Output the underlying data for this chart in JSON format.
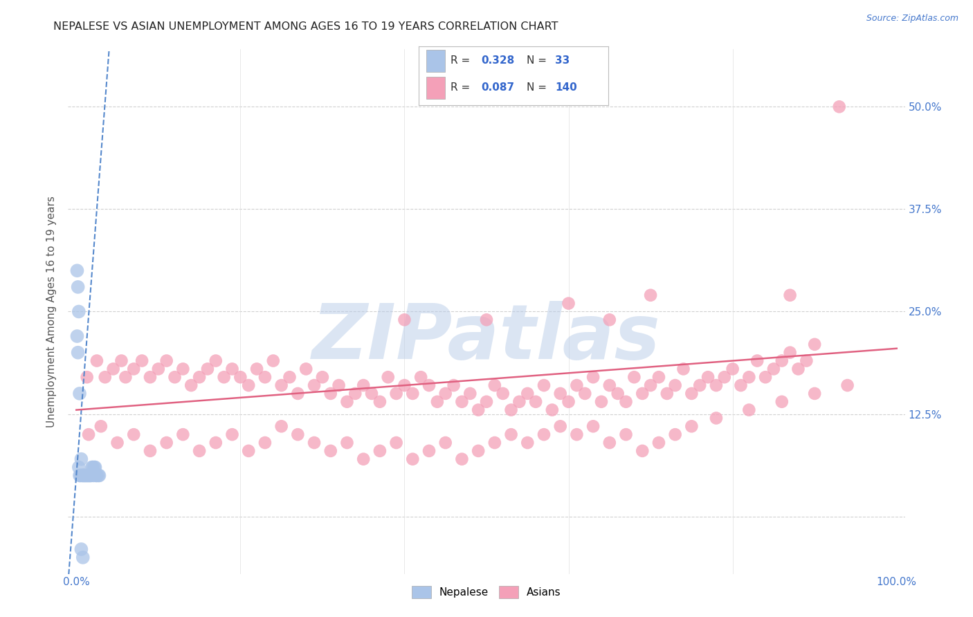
{
  "title": "NEPALESE VS ASIAN UNEMPLOYMENT AMONG AGES 16 TO 19 YEARS CORRELATION CHART",
  "source": "Source: ZipAtlas.com",
  "ylabel": "Unemployment Among Ages 16 to 19 years",
  "xlim": [
    -0.01,
    1.01
  ],
  "ylim": [
    -0.07,
    0.57
  ],
  "ytick_positions": [
    0.0,
    0.125,
    0.25,
    0.375,
    0.5
  ],
  "ytick_labels": [
    "",
    "12.5%",
    "25.0%",
    "37.5%",
    "50.0%"
  ],
  "nepalese_R": 0.328,
  "nepalese_N": 33,
  "asian_R": 0.087,
  "asian_N": 140,
  "nepalese_color": "#aac4e8",
  "asian_color": "#f4a0b8",
  "nepalese_edge_color": "#7aaad0",
  "asian_edge_color": "#e87898",
  "nepalese_trend_color": "#5588cc",
  "asian_trend_color": "#e06080",
  "watermark_text": "ZIPatlas",
  "watermark_color": "#b8cce8",
  "background_color": "#ffffff",
  "grid_color": "#d0d0d0",
  "title_color": "#222222",
  "source_color": "#4477cc",
  "tick_color": "#4477cc",
  "label_color": "#555555",
  "nepalese_x": [
    0.005,
    0.003,
    0.008,
    0.001,
    0.002,
    0.004,
    0.006,
    0.007,
    0.009,
    0.01,
    0.012,
    0.011,
    0.013,
    0.015,
    0.016,
    0.014,
    0.017,
    0.018,
    0.019,
    0.02,
    0.022,
    0.021,
    0.024,
    0.025,
    0.023,
    0.027,
    0.028,
    0.002,
    0.003,
    0.004,
    0.001,
    0.006,
    0.008
  ],
  "nepalese_y": [
    0.05,
    0.06,
    0.05,
    0.22,
    0.2,
    0.05,
    0.07,
    0.05,
    0.05,
    0.05,
    0.05,
    0.05,
    0.05,
    0.05,
    0.05,
    0.05,
    0.05,
    0.05,
    0.06,
    0.06,
    0.06,
    0.05,
    0.05,
    0.05,
    0.06,
    0.05,
    0.05,
    0.28,
    0.25,
    0.15,
    0.3,
    -0.04,
    -0.05
  ],
  "asian_x": [
    0.013,
    0.025,
    0.035,
    0.045,
    0.055,
    0.06,
    0.07,
    0.08,
    0.09,
    0.1,
    0.11,
    0.12,
    0.13,
    0.14,
    0.15,
    0.16,
    0.17,
    0.18,
    0.19,
    0.2,
    0.21,
    0.22,
    0.23,
    0.24,
    0.25,
    0.26,
    0.27,
    0.28,
    0.29,
    0.3,
    0.31,
    0.32,
    0.33,
    0.34,
    0.35,
    0.36,
    0.37,
    0.38,
    0.39,
    0.4,
    0.41,
    0.42,
    0.43,
    0.44,
    0.45,
    0.46,
    0.47,
    0.48,
    0.49,
    0.5,
    0.51,
    0.52,
    0.53,
    0.54,
    0.55,
    0.56,
    0.57,
    0.58,
    0.59,
    0.6,
    0.61,
    0.62,
    0.63,
    0.64,
    0.65,
    0.66,
    0.67,
    0.68,
    0.69,
    0.7,
    0.71,
    0.72,
    0.73,
    0.74,
    0.75,
    0.76,
    0.77,
    0.78,
    0.79,
    0.8,
    0.81,
    0.82,
    0.83,
    0.84,
    0.85,
    0.86,
    0.87,
    0.88,
    0.89,
    0.9,
    0.015,
    0.03,
    0.05,
    0.07,
    0.09,
    0.11,
    0.13,
    0.15,
    0.17,
    0.19,
    0.21,
    0.23,
    0.25,
    0.27,
    0.29,
    0.31,
    0.33,
    0.35,
    0.37,
    0.39,
    0.41,
    0.43,
    0.45,
    0.47,
    0.49,
    0.51,
    0.53,
    0.55,
    0.57,
    0.59,
    0.61,
    0.63,
    0.65,
    0.67,
    0.69,
    0.71,
    0.73,
    0.75,
    0.78,
    0.82,
    0.86,
    0.9,
    0.94,
    0.6,
    0.7,
    0.87,
    0.93,
    0.5,
    0.65,
    0.4
  ],
  "asian_y": [
    0.17,
    0.19,
    0.17,
    0.18,
    0.19,
    0.17,
    0.18,
    0.19,
    0.17,
    0.18,
    0.19,
    0.17,
    0.18,
    0.16,
    0.17,
    0.18,
    0.19,
    0.17,
    0.18,
    0.17,
    0.16,
    0.18,
    0.17,
    0.19,
    0.16,
    0.17,
    0.15,
    0.18,
    0.16,
    0.17,
    0.15,
    0.16,
    0.14,
    0.15,
    0.16,
    0.15,
    0.14,
    0.17,
    0.15,
    0.16,
    0.15,
    0.17,
    0.16,
    0.14,
    0.15,
    0.16,
    0.14,
    0.15,
    0.13,
    0.14,
    0.16,
    0.15,
    0.13,
    0.14,
    0.15,
    0.14,
    0.16,
    0.13,
    0.15,
    0.14,
    0.16,
    0.15,
    0.17,
    0.14,
    0.16,
    0.15,
    0.14,
    0.17,
    0.15,
    0.16,
    0.17,
    0.15,
    0.16,
    0.18,
    0.15,
    0.16,
    0.17,
    0.16,
    0.17,
    0.18,
    0.16,
    0.17,
    0.19,
    0.17,
    0.18,
    0.19,
    0.2,
    0.18,
    0.19,
    0.21,
    0.1,
    0.11,
    0.09,
    0.1,
    0.08,
    0.09,
    0.1,
    0.08,
    0.09,
    0.1,
    0.08,
    0.09,
    0.11,
    0.1,
    0.09,
    0.08,
    0.09,
    0.07,
    0.08,
    0.09,
    0.07,
    0.08,
    0.09,
    0.07,
    0.08,
    0.09,
    0.1,
    0.09,
    0.1,
    0.11,
    0.1,
    0.11,
    0.09,
    0.1,
    0.08,
    0.09,
    0.1,
    0.11,
    0.12,
    0.13,
    0.14,
    0.15,
    0.16,
    0.26,
    0.27,
    0.27,
    0.5,
    0.24,
    0.24,
    0.24
  ],
  "nepalese_trend_x0": -0.01,
  "nepalese_trend_x1": 0.04,
  "nepalese_trend_y0": -0.08,
  "nepalese_trend_y1": 0.57,
  "asian_trend_x0": 0.0,
  "asian_trend_x1": 1.0,
  "asian_trend_y0": 0.13,
  "asian_trend_y1": 0.205
}
